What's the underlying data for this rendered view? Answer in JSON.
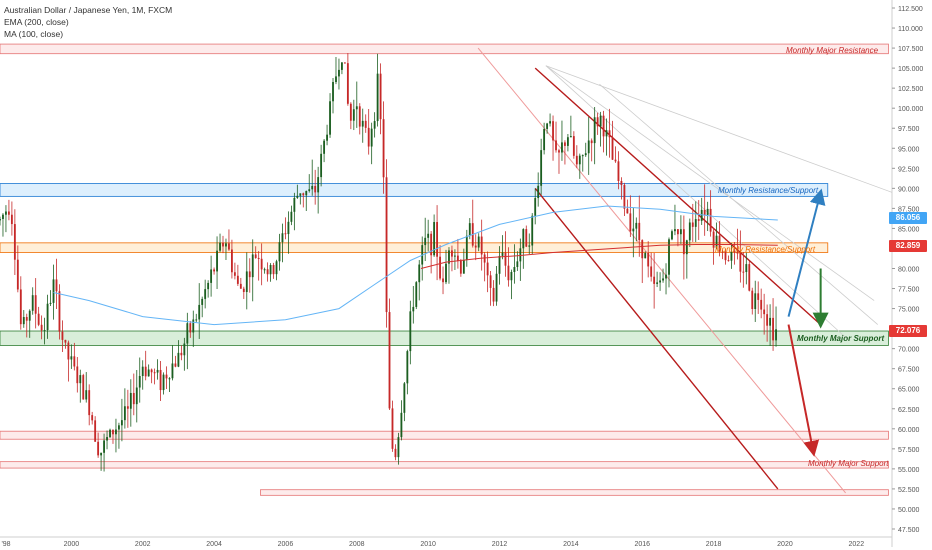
{
  "legend": {
    "title": "Australian Dollar / Japanese Yen, 1M, FXCM",
    "ema": "EMA (200, close)",
    "ma": "MA (100, close)"
  },
  "colors": {
    "up": "#1b5e20",
    "down": "#c62828",
    "ema": "#d32f2f",
    "ma": "#64b5f6",
    "channel": "#b71c1c",
    "support_zone": "#2e7d32",
    "resistance_zone": "#e57373",
    "mixed_zone_blue": "#1976d2",
    "mixed_zone_orange": "#ef6c00"
  },
  "price_tags": [
    {
      "value": "86.056",
      "color": "#42a5f5"
    },
    {
      "value": "82.859",
      "color": "#e53935"
    },
    {
      "value": "72.076",
      "color": "#e53935"
    }
  ],
  "zone_labels": {
    "monthly_major_resistance": "Monthly Major Resistance",
    "monthly_resistance_support_blue": "Monthly Resistance/Support",
    "monthly_resistance_support_orange": "Monthly Resistance/Support",
    "monthly_major_support_green": "Monthly Major Support",
    "monthly_major_support_red": "Monthly Major Support"
  },
  "chart_data": {
    "type": "candlestick",
    "title": "Australian Dollar / Japanese Yen, 1M, FXCM",
    "x_ticks": [
      "'98",
      "2000",
      "2002",
      "2004",
      "2006",
      "2008",
      "2010",
      "2012",
      "2014",
      "2016",
      "2018",
      "2020",
      "2022"
    ],
    "y_ticks": [
      "112.500",
      "110.000",
      "107.500",
      "105.000",
      "102.500",
      "100.000",
      "97.500",
      "95.000",
      "92.500",
      "90.000",
      "87.500",
      "85.000",
      "82.500",
      "80.000",
      "77.500",
      "75.000",
      "72.500",
      "70.000",
      "67.500",
      "65.000",
      "62.500",
      "60.000",
      "57.500",
      "55.000",
      "52.500",
      "50.000",
      "47.500"
    ],
    "ylim": [
      46.5,
      113.5
    ],
    "xlim": [
      1998.0,
      2023.0
    ],
    "price_path": [
      [
        1998.0,
        86.0
      ],
      [
        1998.3,
        88.5
      ],
      [
        1998.6,
        72.0
      ],
      [
        1998.9,
        76.0
      ],
      [
        1999.2,
        72.0
      ],
      [
        1999.5,
        78.0
      ],
      [
        1999.8,
        70.0
      ],
      [
        2000.2,
        66.0
      ],
      [
        2000.5,
        63.0
      ],
      [
        2000.8,
        57.0
      ],
      [
        2001.2,
        60.0
      ],
      [
        2001.6,
        62.0
      ],
      [
        2002.0,
        68.0
      ],
      [
        2002.5,
        66.0
      ],
      [
        2003.0,
        69.0
      ],
      [
        2003.5,
        74.0
      ],
      [
        2004.0,
        80.0
      ],
      [
        2004.3,
        84.0
      ],
      [
        2004.7,
        77.0
      ],
      [
        2005.2,
        82.0
      ],
      [
        2005.6,
        79.0
      ],
      [
        2006.0,
        85.0
      ],
      [
        2006.4,
        90.0
      ],
      [
        2006.8,
        89.0
      ],
      [
        2007.1,
        96.0
      ],
      [
        2007.4,
        104.0
      ],
      [
        2007.6,
        107.6
      ],
      [
        2007.8,
        98.0
      ],
      [
        2008.0,
        101.0
      ],
      [
        2008.3,
        95.0
      ],
      [
        2008.6,
        103.0
      ],
      [
        2008.75,
        92.0
      ],
      [
        2008.85,
        70.0
      ],
      [
        2008.95,
        58.0
      ],
      [
        2009.1,
        57.0
      ],
      [
        2009.3,
        65.0
      ],
      [
        2009.6,
        77.0
      ],
      [
        2009.9,
        83.0
      ],
      [
        2010.2,
        84.0
      ],
      [
        2010.4,
        77.0
      ],
      [
        2010.6,
        84.0
      ],
      [
        2010.9,
        80.0
      ],
      [
        2011.2,
        85.0
      ],
      [
        2011.5,
        82.0
      ],
      [
        2011.8,
        75.0
      ],
      [
        2012.0,
        82.0
      ],
      [
        2012.3,
        79.0
      ],
      [
        2012.6,
        83.0
      ],
      [
        2012.9,
        85.0
      ],
      [
        2013.1,
        92.0
      ],
      [
        2013.3,
        100.0
      ],
      [
        2013.6,
        93.0
      ],
      [
        2013.9,
        97.0
      ],
      [
        2014.2,
        92.0
      ],
      [
        2014.5,
        96.0
      ],
      [
        2014.8,
        99.0
      ],
      [
        2014.9,
        98.0
      ],
      [
        2015.2,
        93.0
      ],
      [
        2015.5,
        88.0
      ],
      [
        2015.8,
        85.0
      ],
      [
        2016.0,
        83.0
      ],
      [
        2016.3,
        77.0
      ],
      [
        2016.6,
        79.0
      ],
      [
        2016.9,
        86.0
      ],
      [
        2017.2,
        83.0
      ],
      [
        2017.5,
        87.0
      ],
      [
        2017.8,
        88.0
      ],
      [
        2018.0,
        84.0
      ],
      [
        2018.3,
        82.0
      ],
      [
        2018.6,
        81.0
      ],
      [
        2018.9,
        80.0
      ],
      [
        2019.1,
        76.0
      ],
      [
        2019.3,
        77.0
      ],
      [
        2019.5,
        74.0
      ],
      [
        2019.7,
        72.5
      ],
      [
        2019.8,
        72.0
      ]
    ],
    "ema_200": [
      [
        2009.8,
        80.0
      ],
      [
        2010.5,
        80.8
      ],
      [
        2011.5,
        81.3
      ],
      [
        2012.5,
        81.6
      ],
      [
        2013.5,
        82.0
      ],
      [
        2014.5,
        82.3
      ],
      [
        2015.5,
        82.6
      ],
      [
        2016.5,
        82.9
      ],
      [
        2017.5,
        83.0
      ],
      [
        2018.5,
        83.0
      ],
      [
        2019.8,
        82.9
      ]
    ],
    "ma_100": [
      [
        1999.5,
        77.0
      ],
      [
        2000.5,
        76.0
      ],
      [
        2002.0,
        74.0
      ],
      [
        2004.0,
        73.0
      ],
      [
        2006.0,
        73.6
      ],
      [
        2007.5,
        75.0
      ],
      [
        2008.5,
        78.0
      ],
      [
        2009.5,
        81.0
      ],
      [
        2010.5,
        83.0
      ],
      [
        2012.0,
        85.5
      ],
      [
        2013.5,
        87.0
      ],
      [
        2015.0,
        87.8
      ],
      [
        2016.5,
        87.4
      ],
      [
        2018.0,
        86.5
      ],
      [
        2019.8,
        86.056
      ]
    ],
    "zones": [
      {
        "label": "Monthly Major Resistance",
        "low": 106.8,
        "high": 108.0,
        "x_start": 1998.0,
        "x_end": 2022.9,
        "kind": "resistance"
      },
      {
        "label": "Monthly Resistance/Support",
        "low": 89.0,
        "high": 90.6,
        "x_start": 1998.0,
        "x_end": 2021.2,
        "kind": "blue"
      },
      {
        "label": "Monthly Resistance/Support",
        "low": 82.0,
        "high": 83.2,
        "x_start": 1998.0,
        "x_end": 2021.2,
        "kind": "orange"
      },
      {
        "label": "Monthly Major Support",
        "low": 70.4,
        "high": 72.2,
        "x_start": 1998.0,
        "x_end": 2022.9,
        "kind": "support"
      },
      {
        "label": "",
        "low": 58.7,
        "high": 59.7,
        "x_start": 1998.0,
        "x_end": 2022.9,
        "kind": "resistance"
      },
      {
        "label": "Monthly Major Support",
        "low": 55.1,
        "high": 55.9,
        "x_start": 1998.0,
        "x_end": 2022.9,
        "kind": "resistance"
      },
      {
        "label": "",
        "low": 51.7,
        "high": 52.4,
        "x_start": 2005.3,
        "x_end": 2022.9,
        "kind": "resistance"
      }
    ],
    "trendlines": [
      {
        "from": [
          2013.0,
          90.0
        ],
        "to": [
          2019.8,
          52.5
        ],
        "kind": "channel"
      },
      {
        "from": [
          2013.0,
          105.0
        ],
        "to": [
          2021.0,
          73.0
        ],
        "kind": "channel"
      },
      {
        "from": [
          2011.4,
          107.5
        ],
        "to": [
          2021.7,
          52.0
        ],
        "kind": "thin"
      },
      {
        "from": [
          2013.3,
          105.3
        ],
        "to": [
          2023.0,
          89.5
        ],
        "kind": "faint"
      },
      {
        "from": [
          2013.3,
          105.3
        ],
        "to": [
          2021.8,
          71.0
        ],
        "kind": "faint"
      },
      {
        "from": [
          2013.3,
          105.3
        ],
        "to": [
          2022.5,
          76.0
        ],
        "kind": "faint"
      },
      {
        "from": [
          2014.8,
          103.0
        ],
        "to": [
          2022.6,
          73.0
        ],
        "kind": "faint"
      }
    ],
    "projection_arrows": [
      {
        "from": [
          2020.1,
          74.0
        ],
        "to": [
          2021.0,
          89.5
        ],
        "color": "#2f7fc1"
      },
      {
        "from": [
          2021.0,
          80.0
        ],
        "to": [
          2021.0,
          73.0
        ],
        "color": "#2e7d32"
      },
      {
        "from": [
          2020.1,
          73.0
        ],
        "to": [
          2020.8,
          57.0
        ],
        "color": "#c62828"
      }
    ]
  }
}
